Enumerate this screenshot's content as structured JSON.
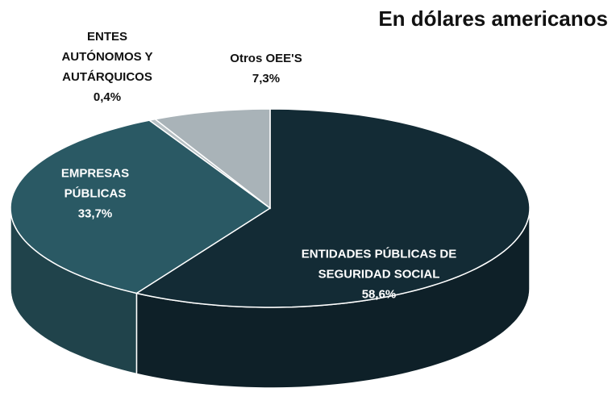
{
  "chart_data": {
    "type": "pie",
    "title": "En dólares americanos",
    "categories": [
      "ENTIDADES PÚBLICAS DE SEGURIDAD SOCIAL",
      "EMPRESAS PÚBLICAS",
      "ENTES AUTÓNOMOS Y AUTÁRQUICOS",
      "Otros OEE'S"
    ],
    "values": [
      58.6,
      33.7,
      0.4,
      7.3
    ],
    "value_labels": [
      "58,6%",
      "33,7%",
      "0,4%",
      "7,3%"
    ],
    "colors": [
      "#132b35",
      "#2a5964",
      "#b7c0c4",
      "#a9b3b8"
    ]
  }
}
